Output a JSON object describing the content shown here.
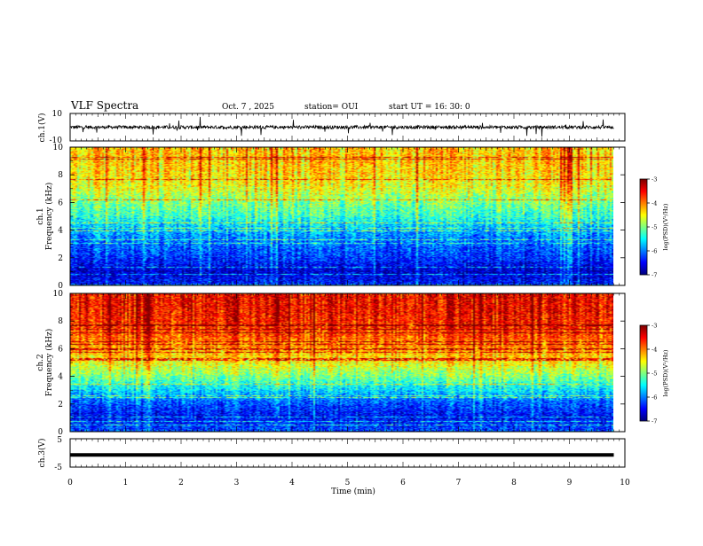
{
  "header": {
    "title": "VLF Spectra",
    "date": "Oct. 7 , 2025",
    "station": "station= OUI",
    "start": "start  UT =   16: 30: 0"
  },
  "chart_data": [
    {
      "type": "line",
      "panel": "ch1-waveform",
      "ylabel": "ch.1(V)",
      "ylim": [
        -10,
        10
      ],
      "yticks": [
        "10",
        "-10"
      ],
      "x_range_min": [
        0,
        9.8
      ],
      "baseline_v": 0,
      "color": "#000000"
    },
    {
      "type": "heatmap",
      "panel": "ch1-spectrogram",
      "ylabel": "ch.1\nFrequency (kHz)",
      "ylabel_lines": [
        "ch.1",
        "Frequency (kHz)"
      ],
      "ylim": [
        0,
        10
      ],
      "yticks": [
        "0",
        "2",
        "4",
        "6",
        "8",
        "10"
      ],
      "x_range_min": [
        0,
        9.8
      ],
      "colorbar": {
        "label": "log(PSD)(V²/Hz)",
        "range": [
          -7,
          -3
        ],
        "ticks": [
          "-3",
          "-4",
          "-5",
          "-6",
          "-7"
        ]
      },
      "level_profile_by_freq_khz": [
        {
          "f": 0.0,
          "log_psd": -6.4
        },
        {
          "f": 1.0,
          "log_psd": -6.7
        },
        {
          "f": 2.0,
          "log_psd": -6.3
        },
        {
          "f": 3.0,
          "log_psd": -6.1
        },
        {
          "f": 4.0,
          "log_psd": -5.8
        },
        {
          "f": 5.0,
          "log_psd": -5.3
        },
        {
          "f": 6.0,
          "log_psd": -5.0
        },
        {
          "f": 7.0,
          "log_psd": -4.6
        },
        {
          "f": 8.0,
          "log_psd": -4.4
        },
        {
          "f": 9.0,
          "log_psd": -4.3
        },
        {
          "f": 10.0,
          "log_psd": -4.3
        }
      ]
    },
    {
      "type": "heatmap",
      "panel": "ch2-spectrogram",
      "ylabel": "ch.2\nFrequency (kHz)",
      "ylabel_lines": [
        "ch.2",
        "Frequency (kHz)"
      ],
      "ylim": [
        0,
        10
      ],
      "yticks": [
        "0",
        "2",
        "4",
        "6",
        "8",
        "10"
      ],
      "x_range_min": [
        0,
        9.8
      ],
      "colorbar": {
        "label": "log(PSD)(V²/Hz)",
        "range": [
          -7,
          -3
        ],
        "ticks": [
          "-3",
          "-4",
          "-5",
          "-6",
          "-7"
        ]
      },
      "level_profile_by_freq_khz": [
        {
          "f": 0.0,
          "log_psd": -6.2
        },
        {
          "f": 1.0,
          "log_psd": -6.5
        },
        {
          "f": 2.0,
          "log_psd": -6.2
        },
        {
          "f": 3.0,
          "log_psd": -5.6
        },
        {
          "f": 4.0,
          "log_psd": -5.0
        },
        {
          "f": 5.0,
          "log_psd": -4.5
        },
        {
          "f": 6.0,
          "log_psd": -4.1
        },
        {
          "f": 7.0,
          "log_psd": -3.8
        },
        {
          "f": 8.0,
          "log_psd": -3.6
        },
        {
          "f": 9.0,
          "log_psd": -3.5
        },
        {
          "f": 10.0,
          "log_psd": -3.5
        }
      ]
    },
    {
      "type": "line",
      "panel": "ch3-waveform",
      "ylabel": "ch.3(V)",
      "ylim": [
        -5,
        5
      ],
      "yticks": [
        "5",
        "-5"
      ],
      "x_range_min": [
        0,
        9.8
      ],
      "baseline_v": -0.7,
      "color": "#000000"
    }
  ],
  "x_axis": {
    "label": "Time (min)",
    "range": [
      0,
      10
    ],
    "ticks": [
      "0",
      "1",
      "2",
      "3",
      "4",
      "5",
      "6",
      "7",
      "8",
      "9",
      "10"
    ]
  }
}
